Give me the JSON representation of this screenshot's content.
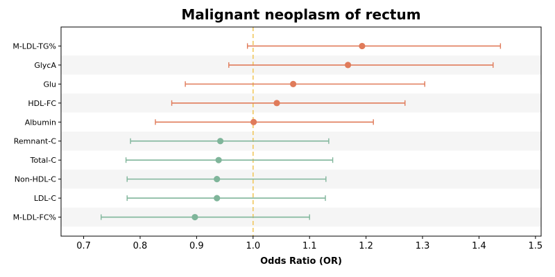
{
  "chart_data": {
    "type": "forest",
    "title": "Malignant neoplasm of rectum",
    "xlabel": "Odds Ratio (OR)",
    "ylabel": "",
    "xlim": [
      0.66,
      1.51
    ],
    "xticks": [
      0.7,
      0.8,
      0.9,
      1.0,
      1.1,
      1.2,
      1.3,
      1.4,
      1.5
    ],
    "xtick_labels": [
      "0.7",
      "0.8",
      "0.9",
      "1.0",
      "1.1",
      "1.2",
      "1.3",
      "1.4",
      "1.5"
    ],
    "reference_line": 1.0,
    "grid": false,
    "row_banding": true,
    "colors": {
      "positive": "#e07b5a",
      "negative": "#7fb59a",
      "reference": "#f0c75e",
      "band": "#f5f5f5"
    },
    "rows": [
      {
        "label": "M-LDL-TG%",
        "or": 1.193,
        "lower": 0.99,
        "upper": 1.438,
        "group": "positive"
      },
      {
        "label": "GlycA",
        "or": 1.168,
        "lower": 0.957,
        "upper": 1.425,
        "group": "positive"
      },
      {
        "label": "Glu",
        "or": 1.071,
        "lower": 0.88,
        "upper": 1.304,
        "group": "positive"
      },
      {
        "label": "HDL-FC",
        "or": 1.042,
        "lower": 0.856,
        "upper": 1.269,
        "group": "positive"
      },
      {
        "label": "Albumin",
        "or": 1.001,
        "lower": 0.827,
        "upper": 1.213,
        "group": "positive"
      },
      {
        "label": "Remnant-C",
        "or": 0.942,
        "lower": 0.783,
        "upper": 1.134,
        "group": "negative"
      },
      {
        "label": "Total-C",
        "or": 0.939,
        "lower": 0.775,
        "upper": 1.141,
        "group": "negative"
      },
      {
        "label": "Non-HDL-C",
        "or": 0.936,
        "lower": 0.777,
        "upper": 1.129,
        "group": "negative"
      },
      {
        "label": "LDL-C",
        "or": 0.936,
        "lower": 0.777,
        "upper": 1.128,
        "group": "negative"
      },
      {
        "label": "M-LDL-FC%",
        "or": 0.897,
        "lower": 0.731,
        "upper": 1.1,
        "group": "negative"
      }
    ]
  }
}
